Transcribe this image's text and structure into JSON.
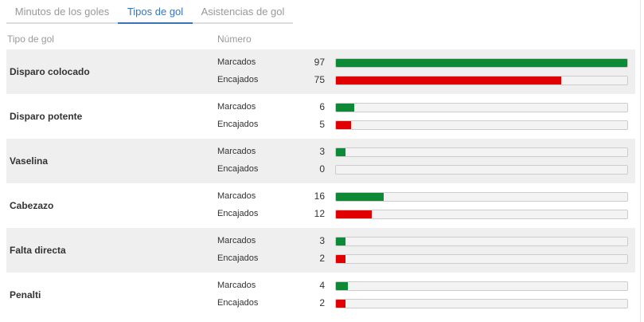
{
  "tabs": [
    {
      "label": "Minutos de los goles",
      "active": false
    },
    {
      "label": "Tipos de gol",
      "active": true
    },
    {
      "label": "Asistencias de gol",
      "active": false
    }
  ],
  "columns": {
    "type": "Tipo de gol",
    "number": "Número"
  },
  "labels": {
    "scored": "Marcados",
    "conceded": "Encajados"
  },
  "colors": {
    "scored": "#0e8a36",
    "conceded": "#e00000",
    "accent": "#3b73b9"
  },
  "max_value": 97,
  "groups": [
    {
      "name": "Disparo colocado",
      "scored": 97,
      "conceded": 75
    },
    {
      "name": "Disparo potente",
      "scored": 6,
      "conceded": 5
    },
    {
      "name": "Vaselina",
      "scored": 3,
      "conceded": 0
    },
    {
      "name": "Cabezazo",
      "scored": 16,
      "conceded": 12
    },
    {
      "name": "Falta directa",
      "scored": 3,
      "conceded": 2
    },
    {
      "name": "Penalti",
      "scored": 4,
      "conceded": 2
    }
  ]
}
